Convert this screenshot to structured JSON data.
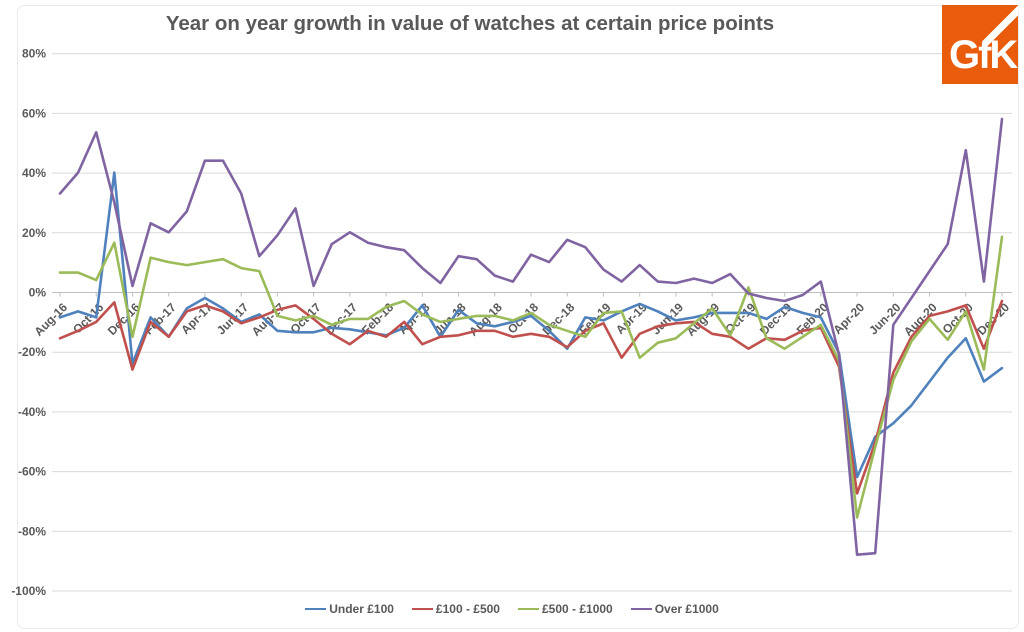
{
  "title": "Year on year growth in value of watches at certain price points",
  "logo": {
    "text": "GfK",
    "bg_color": "#E85C0C",
    "text_color": "#FFFFFF"
  },
  "colors": {
    "title": "#595959",
    "axis_text": "#595959",
    "gridline": "#D9D9D9",
    "axis_line": "#BFBFBF",
    "border": "#EBEBEB",
    "background": "#FFFFFF"
  },
  "chart_data": {
    "type": "line",
    "title": "Year on year growth in value of watches at certain price points",
    "xlabel": "",
    "ylabel": "",
    "grid": true,
    "legend_position": "bottom",
    "ylim": [
      -100,
      80
    ],
    "y_ticks": [
      80,
      60,
      40,
      20,
      0,
      -20,
      -40,
      -60,
      -80,
      -100
    ],
    "y_tick_labels": [
      "80%",
      "60%",
      "40%",
      "20%",
      "0%",
      "-20%",
      "-40%",
      "-60%",
      "-80%",
      "-100%"
    ],
    "x": [
      "Aug-16",
      "Sep-16",
      "Oct-16",
      "Nov-16",
      "Dec-16",
      "Jan-17",
      "Feb-17",
      "Mar-17",
      "Apr-17",
      "May-17",
      "Jun-17",
      "Jul-17",
      "Aug-17",
      "Sep-17",
      "Oct-17",
      "Nov-17",
      "Dec-17",
      "Jan-18",
      "Feb-18",
      "Mar-18",
      "Apr-18",
      "May-18",
      "Jun-18",
      "Jul-18",
      "Aug-18",
      "Sep-18",
      "Oct-18",
      "Nov-18",
      "Dec-18",
      "Jan-19",
      "Feb-19",
      "Mar-19",
      "Apr-19",
      "May-19",
      "Jun-19",
      "Jul-19",
      "Aug-19",
      "Sep-19",
      "Oct-19",
      "Nov-19",
      "Dec-19",
      "Jan-20",
      "Feb-20",
      "Mar-20",
      "Apr-20",
      "May-20",
      "Jun-20",
      "Jul-20",
      "Aug-20",
      "Sep-20",
      "Oct-20",
      "Nov-20",
      "Dec-20"
    ],
    "x_tick_labels": [
      "Aug-16",
      "Oct-16",
      "Dec-16",
      "Feb-17",
      "Apr-17",
      "Jun-17",
      "Aug-17",
      "Oct-17",
      "Dec-17",
      "Feb-18",
      "Apr-18",
      "Jun-18",
      "Aug-18",
      "Oct-18",
      "Dec-18",
      "Feb-19",
      "Apr-19",
      "Jun-19",
      "Aug-19",
      "Oct-19",
      "Dec-19",
      "Feb-20",
      "Apr-20",
      "Jun-20",
      "Aug-20",
      "Oct-20",
      "Dec-20"
    ],
    "series": [
      {
        "name": "Under £100",
        "color": "#4F81BD",
        "values": [
          -8.5,
          -6.5,
          -8.5,
          40,
          -24,
          -8.5,
          -15,
          -5.5,
          -2,
          -5.5,
          -10,
          -7.5,
          -13,
          -13.5,
          -13.5,
          -12,
          -12.5,
          -13.5,
          -14.5,
          -12,
          -4.5,
          -15,
          -6,
          -10.5,
          -11.5,
          -10,
          -8,
          -13,
          -19,
          -8.5,
          -9.5,
          -6.5,
          -4,
          -6.5,
          -9.5,
          -8.5,
          -7,
          -7,
          -7,
          -9,
          -5,
          -7,
          -8.5,
          -20.5,
          -62,
          -48.5,
          -44,
          -38,
          -30,
          -22,
          -15.5,
          -30,
          -25.5
        ]
      },
      {
        "name": "£100 - £500",
        "color": "#C0504D",
        "values": [
          -15.5,
          -13,
          -10,
          -3.5,
          -26,
          -10,
          -15,
          -6.5,
          -4.5,
          -6.5,
          -10.5,
          -8.5,
          -6,
          -4.5,
          -9,
          -14,
          -17.5,
          -13,
          -15,
          -10,
          -17.5,
          -15,
          -14.5,
          -13,
          -13,
          -15,
          -14,
          -15,
          -18.5,
          -13,
          -10.5,
          -22,
          -14,
          -11.5,
          -10.5,
          -10,
          -14,
          -15,
          -19,
          -15.5,
          -16,
          -13,
          -12,
          -25,
          -67.5,
          -50.5,
          -27,
          -15,
          -8,
          -6.5,
          -4.5,
          -19,
          -3
        ]
      },
      {
        "name": "£500 - £1000",
        "color": "#9BBB59",
        "values": [
          6.5,
          6.5,
          4,
          16.5,
          -15,
          11.5,
          10,
          9,
          10,
          11,
          8,
          7,
          -8,
          -9.5,
          -8,
          -11,
          -9,
          -9,
          -5,
          -3,
          -7.5,
          -10,
          -9,
          -8,
          -8,
          -9.5,
          -7,
          -11,
          -13,
          -15,
          -7,
          -6.5,
          -22,
          -17,
          -15.5,
          -10.5,
          -5.5,
          -14.5,
          1.5,
          -15.5,
          -19,
          -15,
          -11,
          -23,
          -75.5,
          -52,
          -29.5,
          -16.5,
          -9,
          -16,
          -6.5,
          -26,
          18.5
        ]
      },
      {
        "name": "Over £1000",
        "color": "#8064A2",
        "values": [
          33,
          40,
          53.5,
          30,
          2,
          23,
          20,
          27,
          44,
          44,
          33,
          12,
          19,
          28,
          2,
          16,
          20,
          16.5,
          15,
          14,
          8,
          3,
          12,
          11,
          5.5,
          3.5,
          12.5,
          10,
          17.5,
          15,
          7.5,
          3.5,
          9,
          3.5,
          3,
          4.5,
          3,
          6,
          -0.5,
          -2,
          -3,
          -1,
          3.5,
          -21,
          -88,
          -87.5,
          -11,
          -2,
          7,
          16,
          47.5,
          3.5,
          58
        ]
      }
    ]
  }
}
